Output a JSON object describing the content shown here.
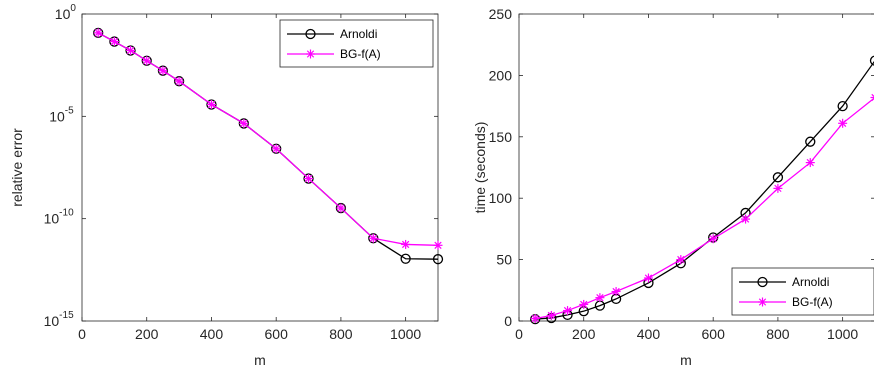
{
  "chart_data": [
    {
      "type": "line",
      "xlabel": "m",
      "ylabel": "relative error",
      "yscale": "log",
      "xlim": [
        0,
        1100
      ],
      "ylim": [
        1e-15,
        1
      ],
      "xticks": [
        "0",
        "200",
        "400",
        "600",
        "800",
        "1000"
      ],
      "yticks": [
        {
          "base": "10",
          "exp": "-15"
        },
        {
          "base": "10",
          "exp": "-10"
        },
        {
          "base": "10",
          "exp": "-5"
        },
        {
          "base": "10",
          "exp": "0"
        }
      ],
      "legend_position": "top-right",
      "grid": false,
      "x": [
        50,
        100,
        150,
        200,
        250,
        300,
        400,
        500,
        600,
        700,
        800,
        900,
        1000,
        1100
      ],
      "series": [
        {
          "name": "Arnoldi",
          "color": "#000000",
          "marker": "circle",
          "values": [
            0.12,
            0.045,
            0.0165,
            0.0052,
            0.0017,
            0.00052,
            3.8e-05,
            4.5e-06,
            2.6e-07,
            9.1e-09,
            3.3e-10,
            1.1e-11,
            1.1e-12,
            1.05e-12
          ]
        },
        {
          "name": "BG-f(A)",
          "color": "#ff00ff",
          "marker": "star",
          "values": [
            0.12,
            0.045,
            0.0165,
            0.0052,
            0.0017,
            0.00052,
            3.8e-05,
            4.5e-06,
            2.6e-07,
            9.1e-09,
            3.3e-10,
            1.1e-11,
            5.5e-12,
            5e-12
          ]
        }
      ]
    },
    {
      "type": "line",
      "xlabel": "m",
      "ylabel": "time (seconds)",
      "xlim": [
        0,
        1100
      ],
      "ylim": [
        0,
        250
      ],
      "xticks": [
        "0",
        "200",
        "400",
        "600",
        "800",
        "1000"
      ],
      "yticks": [
        "0",
        "50",
        "100",
        "150",
        "200",
        "250"
      ],
      "legend_position": "bottom-right",
      "grid": false,
      "x": [
        50,
        100,
        150,
        200,
        250,
        300,
        400,
        500,
        600,
        700,
        800,
        900,
        1000,
        1100
      ],
      "series": [
        {
          "name": "Arnoldi",
          "color": "#000000",
          "marker": "circle",
          "values": [
            1.5,
            2.5,
            5,
            8,
            12.5,
            18,
            31,
            47,
            68,
            88,
            117,
            146,
            175,
            212
          ]
        },
        {
          "name": "BG-f(A)",
          "color": "#ff00ff",
          "marker": "star",
          "values": [
            2,
            4.5,
            8.5,
            13.5,
            19,
            24,
            35,
            50,
            67,
            83,
            108,
            129,
            161,
            182
          ]
        }
      ]
    }
  ]
}
